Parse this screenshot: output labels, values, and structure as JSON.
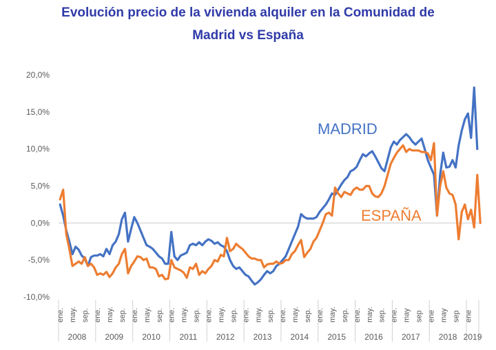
{
  "chart_data": {
    "type": "line",
    "title": "Evolución precio de la vivienda alquiler en la Comunidad de Madrid vs España",
    "title_lines": [
      "Evolución precio de la vivienda alquiler en la Comunidad de",
      "Madrid vs España"
    ],
    "xlabel": "",
    "ylabel": "",
    "ylim": [
      -10,
      20
    ],
    "yticks": [
      20,
      15,
      10,
      5,
      0,
      -5,
      -10
    ],
    "ytick_labels": [
      "20,0%",
      "15,0%",
      "10,0%",
      "5,0%",
      "0,0%",
      "-5,0%",
      "-10,0%"
    ],
    "grid": "zero-line only",
    "legend": "inline labels",
    "x_start": "2008-01",
    "x_end": "2019-04",
    "years": [
      {
        "label": "2008",
        "months": [
          "ene.",
          "may.",
          "sep."
        ]
      },
      {
        "label": "2009",
        "months": [
          "ene.",
          "may.",
          "sep."
        ]
      },
      {
        "label": "2010",
        "months": [
          "ene.",
          "may.",
          "sep."
        ]
      },
      {
        "label": "2011",
        "months": [
          "ene.",
          "may.",
          "sep."
        ]
      },
      {
        "label": "2012",
        "months": [
          "ene.",
          "may.",
          "sep."
        ]
      },
      {
        "label": "2013",
        "months": [
          "ene.",
          "may.",
          "sep."
        ]
      },
      {
        "label": "2014",
        "months": [
          "ene.",
          "may.",
          "sep."
        ]
      },
      {
        "label": "2015",
        "months": [
          "ene.",
          "may.",
          "sep."
        ]
      },
      {
        "label": "2016",
        "months": [
          "ene.",
          "may.",
          "sep."
        ]
      },
      {
        "label": "2017",
        "months": [
          "ene.",
          "may",
          "sep"
        ]
      },
      {
        "label": "2018",
        "months": [
          "ene",
          "may",
          "sep"
        ]
      },
      {
        "label": "2019",
        "months": [
          "ene"
        ]
      }
    ],
    "series": [
      {
        "name": "MADRID",
        "color": "#4472c4",
        "values": [
          2.5,
          1.0,
          -1.0,
          -2.5,
          -4.2,
          -3.2,
          -3.6,
          -4.4,
          -4.8,
          -5.8,
          -4.6,
          -4.4,
          -4.4,
          -4.2,
          -4.5,
          -3.5,
          -4.2,
          -3.0,
          -2.5,
          -1.5,
          0.5,
          1.4,
          -2.5,
          -0.8,
          0.8,
          0.0,
          -1.0,
          -2.0,
          -3.0,
          -3.2,
          -3.5,
          -4.0,
          -4.5,
          -4.8,
          -5.5,
          -5.5,
          -1.2,
          -4.5,
          -5.0,
          -4.4,
          -4.2,
          -4.0,
          -3.0,
          -2.8,
          -3.0,
          -2.6,
          -3.0,
          -2.5,
          -2.2,
          -2.4,
          -2.8,
          -2.6,
          -3.0,
          -3.2,
          -3.8,
          -5.0,
          -5.8,
          -6.2,
          -6.0,
          -6.5,
          -7.0,
          -7.2,
          -7.8,
          -8.3,
          -8.0,
          -7.6,
          -7.0,
          -6.5,
          -6.8,
          -6.5,
          -5.8,
          -5.5,
          -5.0,
          -4.5,
          -3.5,
          -2.5,
          -1.5,
          -0.5,
          1.2,
          0.8,
          0.6,
          0.6,
          0.6,
          0.8,
          1.5,
          2.0,
          2.5,
          3.2,
          4.0,
          3.8,
          4.5,
          5.2,
          5.8,
          6.2,
          7.0,
          7.2,
          7.6,
          8.5,
          9.3,
          9.0,
          9.4,
          9.7,
          9.0,
          8.2,
          7.4,
          7.0,
          8.6,
          10.2,
          11.0,
          10.6,
          11.2,
          11.6,
          12.0,
          11.6,
          11.0,
          10.6,
          11.0,
          11.4,
          10.0,
          8.5,
          7.5,
          6.5,
          1.0,
          6.5,
          9.5,
          7.5,
          7.6,
          8.5,
          7.5,
          10.5,
          12.5,
          14.0,
          14.8,
          11.5,
          18.3,
          10.0
        ]
      },
      {
        "name": "ESPAÑA",
        "color": "#ed7d31",
        "values": [
          3.2,
          4.5,
          -1.5,
          -3.5,
          -5.8,
          -5.5,
          -5.2,
          -5.5,
          -4.6,
          -5.8,
          -5.5,
          -6.0,
          -7.0,
          -6.8,
          -7.0,
          -6.6,
          -7.3,
          -6.8,
          -6.0,
          -5.5,
          -4.2,
          -3.5,
          -6.8,
          -5.8,
          -5.2,
          -4.5,
          -4.6,
          -5.0,
          -4.8,
          -6.0,
          -6.0,
          -6.2,
          -7.2,
          -7.0,
          -7.6,
          -7.5,
          -5.0,
          -6.0,
          -6.2,
          -6.4,
          -6.7,
          -7.4,
          -6.0,
          -6.2,
          -5.5,
          -7.0,
          -6.5,
          -6.8,
          -6.2,
          -5.8,
          -5.0,
          -5.2,
          -4.3,
          -4.5,
          -2.0,
          -3.8,
          -3.5,
          -2.8,
          -3.2,
          -3.5,
          -4.0,
          -4.5,
          -4.8,
          -4.8,
          -5.0,
          -5.0,
          -6.0,
          -5.6,
          -5.5,
          -5.5,
          -5.2,
          -5.5,
          -5.4,
          -5.0,
          -5.0,
          -4.2,
          -3.8,
          -3.0,
          -2.3,
          -4.6,
          -4.0,
          -3.5,
          -2.5,
          -2.0,
          -1.0,
          0.0,
          1.2,
          1.4,
          1.0,
          4.8,
          4.0,
          3.5,
          4.2,
          4.0,
          3.8,
          4.5,
          4.8,
          4.5,
          4.5,
          5.0,
          5.0,
          4.0,
          3.6,
          3.5,
          4.0,
          5.0,
          6.5,
          8.0,
          8.8,
          9.5,
          10.0,
          10.5,
          9.6,
          10.0,
          9.8,
          9.8,
          9.8,
          9.6,
          9.6,
          9.4,
          8.5,
          10.8,
          1.0,
          5.0,
          7.0,
          4.8,
          4.0,
          3.8,
          2.5,
          -2.2,
          1.5,
          2.5,
          0.5,
          1.8,
          -0.6,
          6.5,
          0.0
        ]
      }
    ],
    "annotations": [
      {
        "text": "MADRID",
        "series": "MADRID"
      },
      {
        "text": "ESPAÑA",
        "series": "ESPAÑA"
      }
    ]
  }
}
